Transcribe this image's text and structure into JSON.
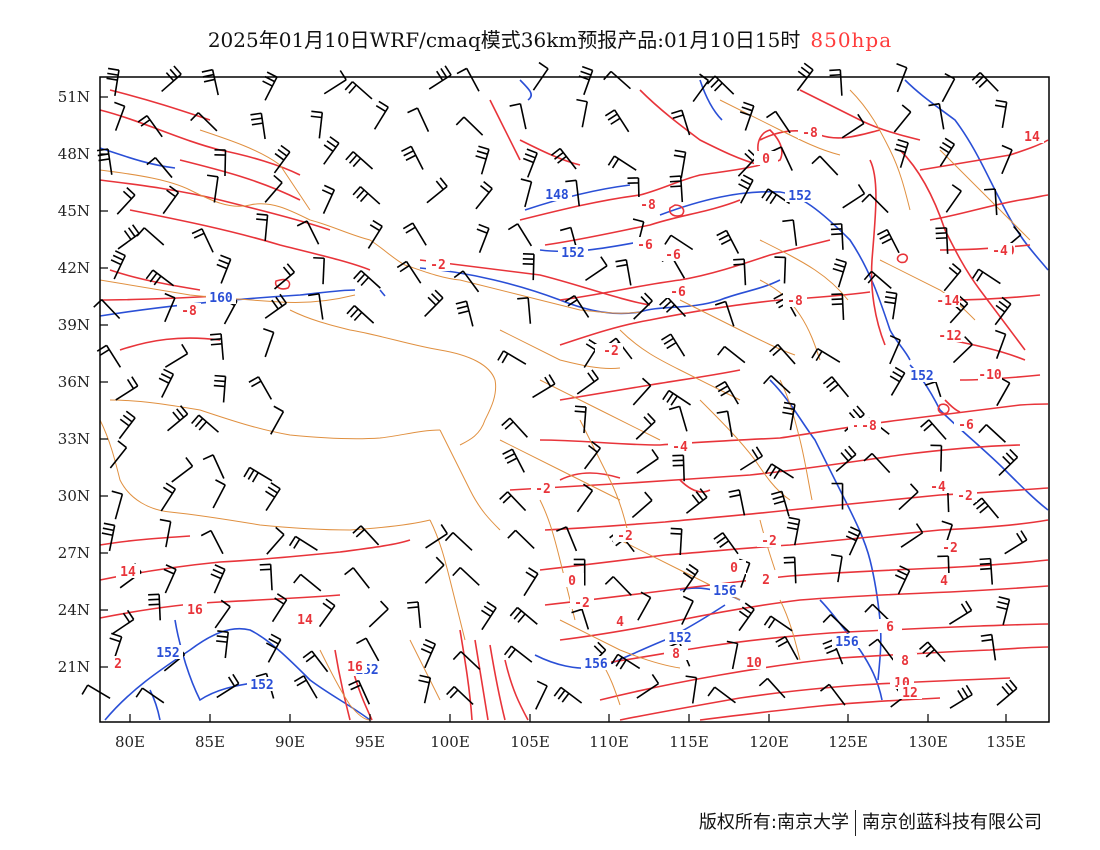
{
  "title": {
    "main": "2025年01月10日WRF/cmaq模式36km预报产品:01月10日15时",
    "level": "850hpa",
    "level_color": "#ff3b3b"
  },
  "axes": {
    "lat_labels": [
      "51N",
      "48N",
      "45N",
      "42N",
      "39N",
      "36N",
      "33N",
      "30N",
      "27N",
      "24N",
      "21N"
    ],
    "lon_labels": [
      "80E",
      "85E",
      "90E",
      "95E",
      "100E",
      "105E",
      "110E",
      "115E",
      "120E",
      "125E",
      "130E",
      "135E"
    ]
  },
  "colors": {
    "geopotential_contour": "#2a4fd6",
    "temperature_contour": "#e8343a",
    "border": "#e09040",
    "wind_barb": "#000000"
  },
  "contour_labels": {
    "blue": [
      "148",
      "152",
      "152",
      "160",
      "152",
      "152",
      "152",
      "152",
      "156",
      "156",
      "156",
      "152"
    ],
    "red": [
      "-8",
      "0",
      "14",
      "-8",
      "-6",
      "-6",
      "-8",
      "-10",
      "-14",
      "-12",
      "-10",
      "-8",
      "-6",
      "-4",
      "-2",
      "-2",
      "-4",
      "-2",
      "-2",
      "-2",
      "-2",
      "0",
      "-2",
      "4",
      "2",
      "14",
      "16",
      "14",
      "16",
      "8",
      "10",
      "6",
      "8",
      "10",
      "12",
      "-2",
      "2",
      "4",
      "-8",
      "-4",
      "-6",
      "-2",
      "-8",
      "0",
      "2",
      "-2",
      "4"
    ]
  },
  "footer": {
    "left": "版权所有:南京大学",
    "right": "南京创蓝科技有限公司"
  }
}
